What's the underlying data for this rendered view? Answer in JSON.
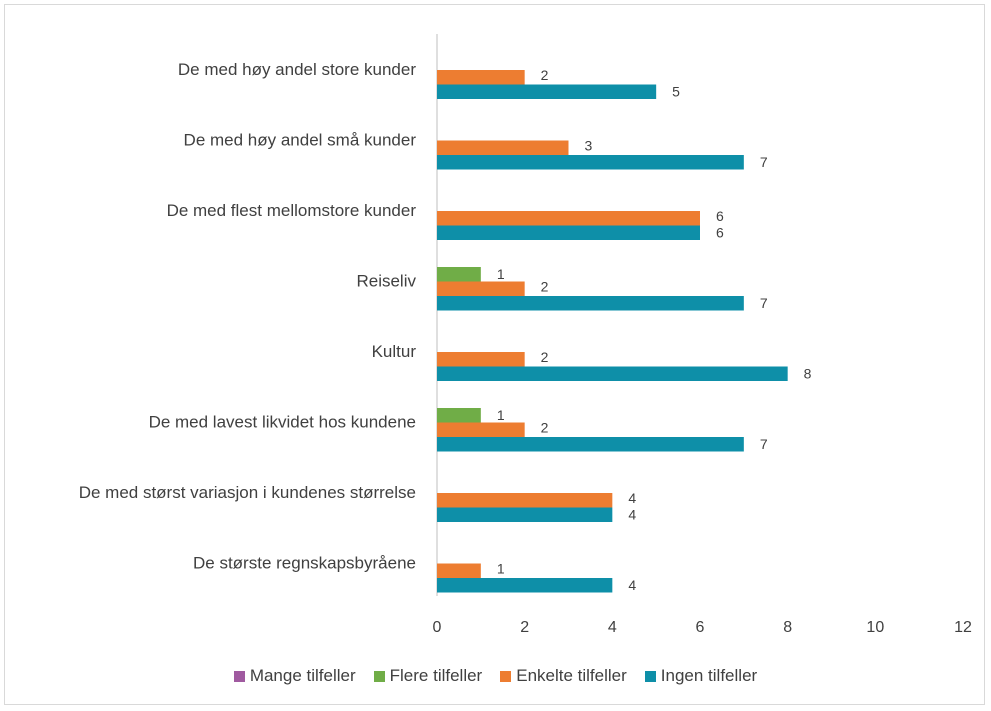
{
  "chart_data": {
    "type": "bar",
    "orientation": "horizontal",
    "categories": [
      "De med høy andel store kunder",
      "De med høy andel små kunder",
      "De med flest mellomstore kunder",
      "Reiseliv",
      "Kultur",
      "De med lavest likvidet hos kundene",
      "De med størst variasjon i kundenes størrelse",
      "De største regnskapsbyråene"
    ],
    "series": [
      {
        "name": "Mange tilfeller",
        "color": "#a05aa0",
        "values": [
          0,
          0,
          0,
          0,
          0,
          0,
          0,
          0
        ]
      },
      {
        "name": "Flere tilfeller",
        "color": "#70ad47",
        "values": [
          0,
          0,
          0,
          1,
          0,
          1,
          0,
          0
        ]
      },
      {
        "name": "Enkelte tilfeller",
        "color": "#ed7d31",
        "values": [
          2,
          3,
          6,
          2,
          2,
          2,
          4,
          1
        ]
      },
      {
        "name": "Ingen tilfeller",
        "color": "#0e8fa8",
        "values": [
          5,
          7,
          6,
          7,
          8,
          7,
          4,
          4
        ]
      }
    ],
    "xlim": [
      0,
      12
    ],
    "x_ticks": [
      "0",
      "2",
      "4",
      "6",
      "8",
      "10",
      "12"
    ],
    "legend_position": "bottom",
    "grid": false
  }
}
